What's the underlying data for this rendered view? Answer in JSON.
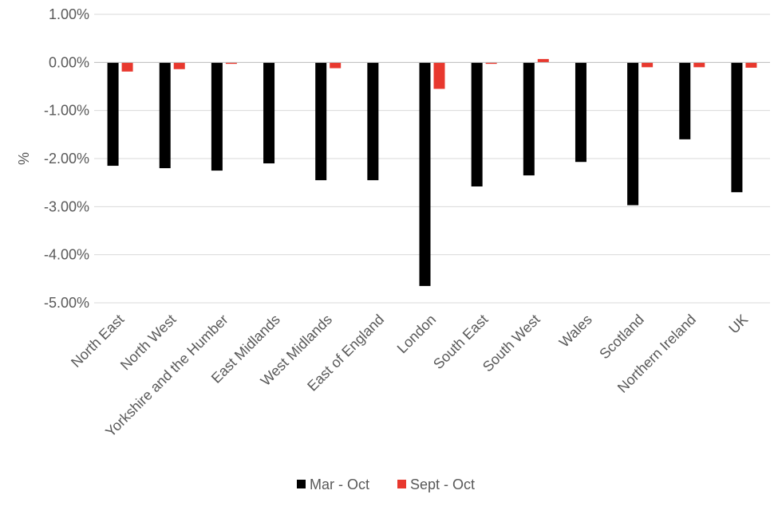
{
  "chart_data": {
    "type": "bar",
    "title": "",
    "xlabel": "",
    "ylabel": "%",
    "ylim": [
      -5,
      1
    ],
    "ytick_step": 1,
    "ytick_format": "percent_2dp",
    "grid": true,
    "legend_position": "bottom",
    "categories": [
      "North East",
      "North West",
      "Yorkshire and the Humber",
      "East Midlands",
      "West Midlands",
      "East of England",
      "London",
      "South East",
      "South West",
      "Wales",
      "Scotland",
      "Northern Ireland",
      "UK"
    ],
    "series": [
      {
        "name": "Mar - Oct",
        "color": "#000000",
        "values": [
          -2.15,
          -2.2,
          -2.25,
          -2.1,
          -2.45,
          -2.45,
          -4.65,
          -2.58,
          -2.35,
          -2.07,
          -2.97,
          -1.6,
          -2.7
        ]
      },
      {
        "name": "Sept - Oct",
        "color": "#e8382e",
        "values": [
          -0.19,
          -0.14,
          -0.03,
          0.0,
          -0.12,
          0.0,
          -0.55,
          -0.03,
          0.07,
          0.0,
          -0.1,
          -0.1,
          -0.11
        ]
      }
    ]
  }
}
